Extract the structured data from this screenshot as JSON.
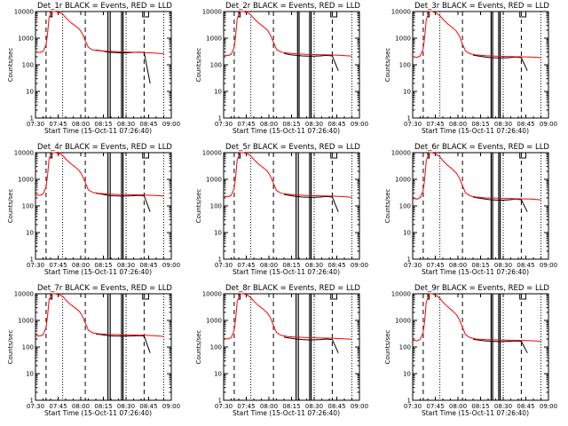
{
  "panel_titles": [
    "Det_1r  BLACK = Events, RED = LLD",
    "Det_2r  BLACK = Events, RED = LLD",
    "Det_3r  BLACK = Events, RED = LLD",
    "Det_4r  BLACK = Events, RED = LLD",
    "Det_5r  BLACK = Events, RED = LLD",
    "Det_6r  BLACK = Events, RED = LLD",
    "Det_7r  BLACK = Events, RED = LLD",
    "Det_8r  BLACK = Events, RED = LLD",
    "Det_9r  BLACK = Events, RED = LLD"
  ],
  "xlabel": "Start Time (15-Oct-11 07:26:40)",
  "ylabel": "Counts/sec",
  "x_tick_labels": [
    "07:30",
    "07:45",
    "08:00",
    "08:15",
    "08:30",
    "08:45",
    "09:00"
  ],
  "y_tick_labels": [
    "1",
    "10",
    "100",
    "1000",
    "10000"
  ],
  "colors": {
    "events": "#000000",
    "lld": "#ff0000",
    "frame": "#000000",
    "background": "#ffffff"
  },
  "chart_data": {
    "type": "line",
    "layout": "3x3 small multiples",
    "yscale": "log",
    "x_unit": "minutes after 07:30",
    "xlim": [
      0,
      90
    ],
    "ylim": [
      1,
      10000
    ],
    "dashed_vlines": [
      7,
      33,
      72
    ],
    "dotted_vlines": [
      18,
      60,
      85
    ],
    "solid_vlines": [
      [
        48,
        49.5
      ],
      [
        57,
        58
      ],
      [
        49,
        50
      ],
      [
        57,
        58
      ],
      [
        52,
        53
      ],
      [
        57,
        58
      ],
      [
        48,
        49.5
      ],
      [
        57,
        58
      ],
      [
        48,
        49.5
      ],
      [
        57,
        58
      ],
      [
        52,
        53
      ],
      [
        57,
        58
      ],
      [
        48,
        49.5
      ],
      [
        57,
        58
      ],
      [
        48,
        49.5
      ],
      [
        57,
        58
      ],
      [
        52,
        53
      ],
      [
        57,
        58
      ]
    ],
    "attenuator_marks": [
      [
        [
          10,
          11
        ],
        [
          71,
          75
        ]
      ],
      [
        [
          10,
          11
        ],
        [
          71,
          75
        ]
      ],
      [
        [
          10,
          11
        ],
        [
          71,
          75
        ]
      ],
      [
        [
          10,
          11
        ],
        [
          71,
          75
        ]
      ],
      [
        [
          10,
          11
        ],
        [
          71,
          75
        ]
      ],
      [
        [
          10,
          11
        ],
        [
          71,
          75
        ]
      ],
      [
        [
          10,
          11
        ],
        [
          71,
          75
        ]
      ],
      [
        [
          10,
          11
        ],
        [
          71,
          75
        ]
      ],
      [
        [
          10,
          11
        ],
        [
          71,
          75
        ]
      ]
    ],
    "series": [
      {
        "name": "BLACK = Events",
        "color": "#000000",
        "panels": [
          {
            "x": [
              40,
              44,
              48,
              52,
              56,
              60,
              64,
              68,
              72,
              76
            ],
            "y": [
              360,
              330,
              300,
              290,
              280,
              280,
              290,
              300,
              290,
              20
            ]
          },
          {
            "x": [
              40,
              44,
              48,
              52,
              56,
              60,
              64,
              68,
              72,
              76
            ],
            "y": [
              270,
              240,
              225,
              215,
              210,
              210,
              215,
              225,
              215,
              60
            ]
          },
          {
            "x": [
              40,
              44,
              48,
              52,
              56,
              60,
              64,
              68,
              72,
              76
            ],
            "y": [
              230,
              210,
              195,
              185,
              180,
              180,
              185,
              195,
              185,
              60
            ]
          },
          {
            "x": [
              40,
              44,
              48,
              52,
              56,
              60,
              64,
              68,
              72,
              76
            ],
            "y": [
              300,
              275,
              250,
              240,
              235,
              235,
              240,
              250,
              240,
              60
            ]
          },
          {
            "x": [
              40,
              44,
              48,
              52,
              56,
              60,
              64,
              68,
              72,
              76
            ],
            "y": [
              270,
              245,
              225,
              215,
              210,
              210,
              215,
              225,
              215,
              60
            ]
          },
          {
            "x": [
              40,
              44,
              48,
              52,
              56,
              60,
              64,
              68,
              72,
              76
            ],
            "y": [
              215,
              195,
              180,
              170,
              165,
              165,
              170,
              180,
              170,
              60
            ]
          },
          {
            "x": [
              40,
              44,
              48,
              52,
              56,
              60,
              64,
              68,
              72,
              76
            ],
            "y": [
              310,
              290,
              270,
              260,
              255,
              255,
              260,
              270,
              260,
              60
            ]
          },
          {
            "x": [
              40,
              44,
              48,
              52,
              56,
              60,
              64,
              68,
              72,
              76
            ],
            "y": [
              235,
              215,
              200,
              190,
              185,
              185,
              190,
              200,
              190,
              60
            ]
          },
          {
            "x": [
              40,
              44,
              48,
              52,
              56,
              60,
              64,
              68,
              72,
              76
            ],
            "y": [
              195,
              180,
              170,
              165,
              160,
              160,
              165,
              170,
              165,
              60
            ]
          }
        ]
      },
      {
        "name": "RED = LLD",
        "color": "#ff0000",
        "panels": [
          {
            "x": [
              0,
              3,
              5,
              7,
              8,
              9,
              11,
              13,
              16,
              18,
              20,
              23,
              26,
              29,
              31,
              33,
              35,
              38,
              42,
              48,
              55,
              62,
              70,
              78,
              85
            ],
            "y": [
              300,
              290,
              320,
              550,
              1500,
              6000,
              10000,
              10000,
              9000,
              8000,
              6000,
              4000,
              3000,
              2200,
              1500,
              800,
              450,
              360,
              340,
              320,
              310,
              300,
              290,
              280,
              260
            ]
          },
          {
            "x": [
              0,
              3,
              5,
              7,
              8,
              9,
              11,
              13,
              16,
              18,
              20,
              23,
              26,
              29,
              31,
              33,
              35,
              38,
              42,
              48,
              55,
              62,
              70,
              78,
              85
            ],
            "y": [
              230,
              220,
              250,
              450,
              1300,
              5500,
              10000,
              10000,
              9000,
              7500,
              5500,
              3800,
              2800,
              2000,
              1300,
              700,
              380,
              300,
              275,
              260,
              245,
              240,
              235,
              225,
              210
            ]
          },
          {
            "x": [
              0,
              3,
              5,
              7,
              8,
              9,
              11,
              13,
              16,
              18,
              20,
              23,
              26,
              29,
              31,
              33,
              35,
              38,
              42,
              48,
              55,
              62,
              70,
              78,
              85
            ],
            "y": [
              200,
              190,
              215,
              400,
              1200,
              5000,
              10000,
              10000,
              8500,
              7000,
              5200,
              3500,
              2600,
              1800,
              1200,
              600,
              330,
              260,
              235,
              220,
              210,
              205,
              200,
              195,
              185
            ]
          },
          {
            "x": [
              0,
              3,
              5,
              7,
              8,
              9,
              11,
              13,
              16,
              18,
              20,
              23,
              26,
              29,
              31,
              33,
              35,
              38,
              42,
              48,
              55,
              62,
              70,
              78,
              85
            ],
            "y": [
              260,
              250,
              280,
              500,
              1400,
              6000,
              10000,
              10000,
              9000,
              7800,
              5800,
              4000,
              3000,
              2100,
              1400,
              750,
              400,
              320,
              295,
              280,
              270,
              265,
              260,
              250,
              235
            ]
          },
          {
            "x": [
              0,
              3,
              5,
              7,
              8,
              9,
              11,
              13,
              16,
              18,
              20,
              23,
              26,
              29,
              31,
              33,
              35,
              38,
              42,
              48,
              55,
              62,
              70,
              78,
              85
            ],
            "y": [
              230,
              220,
              250,
              450,
              1300,
              5500,
              10000,
              10000,
              9000,
              7500,
              5500,
              3800,
              2800,
              2000,
              1300,
              700,
              380,
              300,
              275,
              260,
              245,
              240,
              235,
              225,
              210
            ]
          },
          {
            "x": [
              0,
              3,
              5,
              7,
              8,
              9,
              11,
              13,
              16,
              18,
              20,
              23,
              26,
              29,
              31,
              33,
              35,
              38,
              42,
              48,
              55,
              62,
              70,
              78,
              85
            ],
            "y": [
              190,
              180,
              205,
              380,
              1100,
              5000,
              10000,
              10000,
              8500,
              7000,
              5000,
              3400,
              2500,
              1700,
              1100,
              580,
              310,
              240,
              215,
              200,
              195,
              190,
              185,
              180,
              170
            ]
          },
          {
            "x": [
              0,
              3,
              5,
              7,
              8,
              9,
              11,
              13,
              16,
              18,
              20,
              23,
              26,
              29,
              31,
              33,
              35,
              38,
              42,
              48,
              55,
              62,
              70,
              78,
              85
            ],
            "y": [
              270,
              260,
              290,
              520,
              1500,
              6000,
              10000,
              10000,
              9000,
              8000,
              6000,
              4000,
              3000,
              2200,
              1500,
              800,
              430,
              340,
              315,
              300,
              290,
              285,
              280,
              270,
              250
            ]
          },
          {
            "x": [
              0,
              3,
              5,
              7,
              8,
              9,
              11,
              13,
              16,
              18,
              20,
              23,
              26,
              29,
              31,
              33,
              35,
              38,
              42,
              48,
              55,
              62,
              70,
              78,
              85
            ],
            "y": [
              210,
              200,
              225,
              420,
              1200,
              5200,
              10000,
              10000,
              8800,
              7200,
              5300,
              3600,
              2700,
              1900,
              1250,
              650,
              350,
              275,
              250,
              235,
              225,
              220,
              215,
              205,
              195
            ]
          },
          {
            "x": [
              0,
              3,
              5,
              7,
              8,
              9,
              11,
              13,
              16,
              18,
              20,
              23,
              26,
              29,
              31,
              33,
              35,
              38,
              42,
              48,
              55,
              62,
              70,
              78,
              85
            ],
            "y": [
              180,
              170,
              195,
              360,
              1050,
              4800,
              10000,
              10000,
              8400,
              6800,
              4900,
              3300,
              2400,
              1650,
              1050,
              550,
              290,
              225,
              200,
              190,
              185,
              180,
              178,
              172,
              165
            ]
          }
        ]
      }
    ]
  }
}
